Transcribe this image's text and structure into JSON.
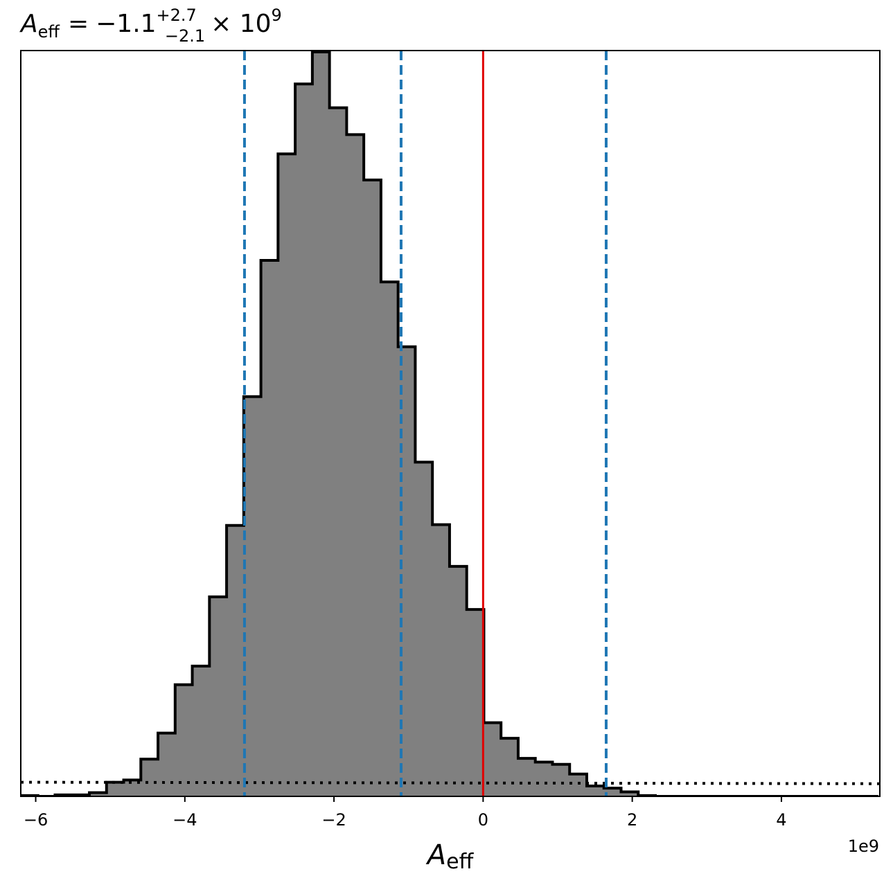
{
  "chart_data": {
    "type": "bar",
    "title": {
      "symbol": "A",
      "subscript": "eff",
      "equals": "=",
      "value": "−1.1",
      "plus": "+2.7",
      "minus": "−2.1",
      "times": "× 10",
      "exponent": "9"
    },
    "xlabel": {
      "symbol": "A",
      "subscript": "eff"
    },
    "x_offset_label": "1e9",
    "xlim": [
      -6.2,
      5.32
    ],
    "ylim": [
      0,
      1.0
    ],
    "x_ticks": [
      -6,
      -4,
      -2,
      0,
      2,
      4
    ],
    "x_tick_labels": [
      "−6",
      "−4",
      "−2",
      "0",
      "2",
      "4"
    ],
    "histogram": {
      "edges": [
        -6.2,
        -5.97,
        -5.74,
        -5.51,
        -5.28,
        -5.05,
        -4.82,
        -4.59,
        -4.36,
        -4.13,
        -3.9,
        -3.67,
        -3.44,
        -3.21,
        -2.98,
        -2.75,
        -2.52,
        -2.29,
        -2.06,
        -1.83,
        -1.6,
        -1.37,
        -1.14,
        -0.91,
        -0.68,
        -0.45,
        -0.22,
        0.01,
        0.24,
        0.47,
        0.7,
        0.93,
        1.16,
        1.39,
        1.62,
        1.85,
        2.08,
        2.31,
        2.54,
        2.77,
        3.0,
        3.23,
        3.46,
        3.69,
        3.92,
        4.15,
        4.38,
        4.61,
        4.84,
        5.07,
        5.3
      ],
      "counts": [
        0.001,
        0.0,
        0.002,
        0.002,
        0.005,
        0.019,
        0.022,
        0.05,
        0.085,
        0.15,
        0.175,
        0.268,
        0.364,
        0.537,
        0.72,
        0.863,
        0.957,
        1.0,
        0.925,
        0.889,
        0.828,
        0.691,
        0.604,
        0.449,
        0.365,
        0.309,
        0.251,
        0.099,
        0.078,
        0.051,
        0.046,
        0.043,
        0.03,
        0.014,
        0.011,
        0.006,
        0.001,
        0.0,
        0.0,
        0.0,
        0.0,
        0.0,
        0.0,
        0.0,
        0.0,
        0.0,
        0.0,
        0.0,
        0.0,
        0.0
      ],
      "fill_color": "#808080",
      "edge_color": "#000000"
    },
    "quantile_lines": [
      -3.2,
      -1.1,
      1.65
    ],
    "quantile_color": "#1f77b4",
    "reference_line": 0,
    "reference_color": "#e00000",
    "prior_line": {
      "y": [
        0.019,
        0.017
      ],
      "style": "dotted",
      "color": "#000000"
    },
    "grid": false,
    "legend": "none"
  }
}
